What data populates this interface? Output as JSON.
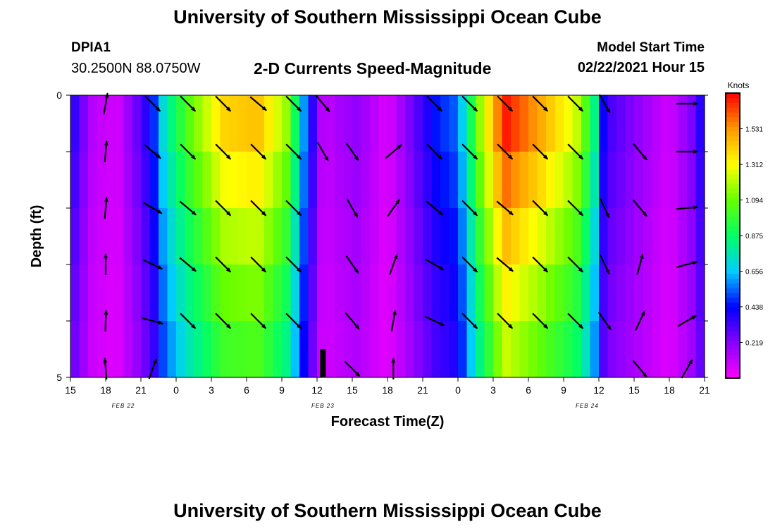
{
  "header": {
    "title": "University of Southern Mississippi Ocean Cube",
    "station_id": "DPIA1",
    "station_coords": "30.2500N 88.0750W",
    "model_start_label": "Model Start Time",
    "model_start_value": "02/22/2021 Hour 15"
  },
  "footer": {
    "title": "University of Southern Mississippi Ocean Cube"
  },
  "chart_data": {
    "type": "heatmap",
    "title": "2-D Currents Speed-Magnitude",
    "xlabel": "Forecast Time(Z)",
    "ylabel": "Depth (ft)",
    "xlim": [
      15,
      69
    ],
    "ylim": [
      0,
      5
    ],
    "y_ticks": [
      "0",
      "5"
    ],
    "x_ticks": [
      {
        "h": 15,
        "label": "15"
      },
      {
        "h": 18,
        "label": "18"
      },
      {
        "h": 21,
        "label": "21"
      },
      {
        "h": 24,
        "label": "0"
      },
      {
        "h": 27,
        "label": "3"
      },
      {
        "h": 30,
        "label": "6"
      },
      {
        "h": 33,
        "label": "9"
      },
      {
        "h": 36,
        "label": "12"
      },
      {
        "h": 39,
        "label": "15"
      },
      {
        "h": 42,
        "label": "18"
      },
      {
        "h": 45,
        "label": "21"
      },
      {
        "h": 48,
        "label": "0"
      },
      {
        "h": 51,
        "label": "3"
      },
      {
        "h": 54,
        "label": "6"
      },
      {
        "h": 57,
        "label": "9"
      },
      {
        "h": 60,
        "label": "12"
      },
      {
        "h": 63,
        "label": "15"
      },
      {
        "h": 66,
        "label": "18"
      },
      {
        "h": 69,
        "label": "21"
      }
    ],
    "date_labels": [
      {
        "h": 19.5,
        "label": "FEB 22"
      },
      {
        "h": 36.5,
        "label": "FEB 23"
      },
      {
        "h": 59,
        "label": "FEB 24"
      }
    ],
    "colorbar": {
      "unit": "Knots",
      "min": 0,
      "max": 1.75,
      "ticks": [
        "0.219",
        "0.438",
        "0.656",
        "0.875",
        "1.094",
        "1.312",
        "1.531"
      ],
      "tick_values": [
        0.219,
        0.438,
        0.656,
        0.875,
        1.094,
        1.312,
        1.531
      ]
    },
    "colors": {
      "scale": [
        "#ff00ff",
        "#8800ff",
        "#0000ff",
        "#00ccff",
        "#00ff66",
        "#66ff00",
        "#ffff00",
        "#ff9900",
        "#ff0000"
      ]
    },
    "depth_layers": 5,
    "time_profile": [
      {
        "h": 15,
        "v": 0.4
      },
      {
        "h": 17,
        "v": 0.12
      },
      {
        "h": 19,
        "v": 0.08
      },
      {
        "h": 20.5,
        "v": 0.25
      },
      {
        "h": 22,
        "v": 0.45
      },
      {
        "h": 23,
        "v": 0.75
      },
      {
        "h": 25,
        "v": 1.05
      },
      {
        "h": 28,
        "v": 1.4
      },
      {
        "h": 31,
        "v": 1.45
      },
      {
        "h": 33.5,
        "v": 1.15
      },
      {
        "h": 35,
        "v": 0.55
      },
      {
        "h": 36.5,
        "v": 0.1
      },
      {
        "h": 37.5,
        "v": 0.15
      },
      {
        "h": 39.5,
        "v": 0.2
      },
      {
        "h": 42,
        "v": 0.06
      },
      {
        "h": 44,
        "v": 0.25
      },
      {
        "h": 46,
        "v": 0.45
      },
      {
        "h": 48,
        "v": 0.55
      },
      {
        "h": 50,
        "v": 1.2
      },
      {
        "h": 52,
        "v": 1.72
      },
      {
        "h": 55,
        "v": 1.5
      },
      {
        "h": 58,
        "v": 1.25
      },
      {
        "h": 59.5,
        "v": 0.9
      },
      {
        "h": 60.5,
        "v": 0.35
      },
      {
        "h": 63,
        "v": 0.22
      },
      {
        "h": 66,
        "v": 0.08
      },
      {
        "h": 68,
        "v": 0.25
      },
      {
        "h": 69,
        "v": 0.45
      }
    ],
    "depth_factors": [
      1.0,
      0.93,
      0.85,
      0.78,
      0.72,
      0.6
    ],
    "vectors": {
      "columns": [
        {
          "h": 18,
          "dir": [
            80,
            85,
            85,
            90,
            88,
            95
          ]
        },
        {
          "h": 22,
          "dir": [
            -45,
            -40,
            -30,
            -25,
            -15,
            70
          ]
        },
        {
          "h": 25,
          "dir": [
            -45,
            -45,
            -40,
            -40,
            -45,
            null
          ]
        },
        {
          "h": 28,
          "dir": [
            -45,
            -45,
            -45,
            -45,
            -45,
            null
          ]
        },
        {
          "h": 31,
          "dir": [
            -40,
            -45,
            -45,
            -45,
            -45,
            null
          ]
        },
        {
          "h": 34,
          "dir": [
            -45,
            -45,
            -45,
            -45,
            -45,
            null
          ]
        },
        {
          "h": 36.5,
          "dir": [
            -50,
            -60,
            null,
            null,
            null,
            null
          ]
        },
        {
          "h": 39,
          "dir": [
            null,
            -55,
            -60,
            -55,
            -50,
            -45
          ]
        },
        {
          "h": 42.5,
          "dir": [
            null,
            40,
            55,
            70,
            80,
            90
          ]
        },
        {
          "h": 46,
          "dir": [
            -45,
            -45,
            -40,
            -30,
            -25,
            null
          ]
        },
        {
          "h": 49,
          "dir": [
            -45,
            -45,
            -45,
            -45,
            -45,
            null
          ]
        },
        {
          "h": 52,
          "dir": [
            -45,
            -45,
            -40,
            -40,
            -45,
            null
          ]
        },
        {
          "h": 55,
          "dir": [
            -45,
            -45,
            -45,
            -45,
            -45,
            null
          ]
        },
        {
          "h": 58,
          "dir": [
            -45,
            -45,
            -45,
            -45,
            -45,
            null
          ]
        },
        {
          "h": 60.5,
          "dir": [
            -60,
            null,
            -65,
            -65,
            -55,
            null
          ]
        },
        {
          "h": 63.5,
          "dir": [
            null,
            -50,
            -50,
            75,
            65,
            -50
          ]
        },
        {
          "h": 67.5,
          "dir": [
            0,
            0,
            5,
            15,
            30,
            60
          ]
        }
      ]
    }
  }
}
